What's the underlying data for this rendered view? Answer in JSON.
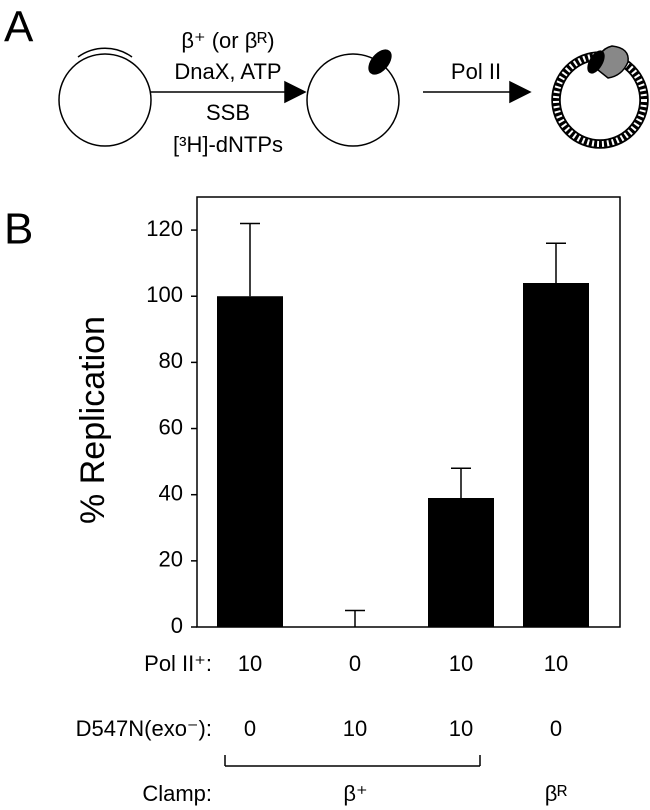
{
  "panel_a": {
    "label": "A",
    "step1_lines": [
      "β⁺ (or βᴿ)",
      "DnaX, ATP",
      "SSB",
      "[³H]-dNTPs"
    ],
    "step2": "Pol II"
  },
  "chart_data": {
    "type": "bar",
    "panel_label": "B",
    "y_label": "% Replication",
    "categories": [
      null,
      null,
      null,
      null
    ],
    "values": [
      100,
      0,
      39,
      104
    ],
    "errors": [
      22,
      5,
      9,
      12
    ],
    "color": "#000000",
    "ylim": [
      0,
      130
    ],
    "yticks": [
      0,
      20,
      40,
      60,
      80,
      100,
      120
    ]
  },
  "table": {
    "rows": [
      {
        "label": "Pol II⁺:",
        "values": [
          10,
          0,
          10,
          10
        ]
      },
      {
        "label": "D547N(exo⁻):",
        "values": [
          0,
          10,
          10,
          0
        ]
      }
    ],
    "clamp": {
      "label": "Clamp:",
      "groups": [
        {
          "text": "β⁺",
          "span": [
            0,
            2
          ]
        },
        {
          "text": "βᴿ",
          "span": [
            3,
            3
          ]
        }
      ]
    }
  }
}
